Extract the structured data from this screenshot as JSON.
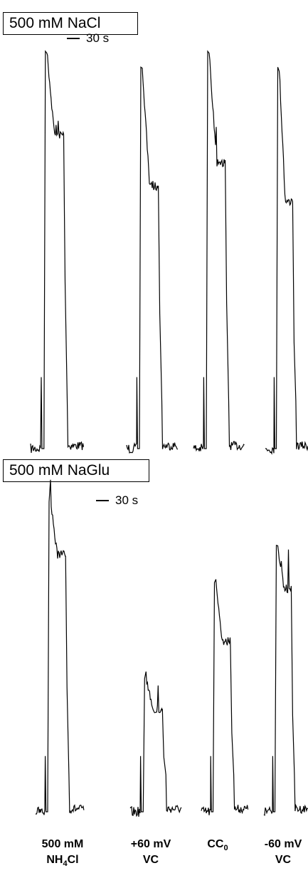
{
  "panels": {
    "top": {
      "label": "500 mM NaCl",
      "scale_bar": "30 s"
    },
    "bottom": {
      "label": "500 mM NaGlu",
      "scale_bar": "30 s"
    }
  },
  "conditions": [
    {
      "line1": "500 mM",
      "line2": "NH",
      "line2_sub": "4",
      "line2_tail": "Cl"
    },
    {
      "line1": "+60 mV",
      "line2": "VC",
      "line2_sub": "",
      "line2_tail": ""
    },
    {
      "line1": "CC",
      "line1_sub": "0",
      "line2": "",
      "line2_sub": "",
      "line2_tail": ""
    },
    {
      "line1": "-60 mV",
      "line2": "VC",
      "line2_sub": "",
      "line2_tail": ""
    }
  ],
  "colors": {
    "trace": "#000000",
    "background": "#ffffff"
  },
  "chart_data": [
    {
      "type": "line",
      "panel": "500 mM NaCl",
      "title": "",
      "xlabel": "",
      "ylabel": "",
      "scale_bar": "30 s",
      "series": [
        {
          "condition": "500 mM NH4Cl",
          "baseline": 0,
          "peak": 1.0,
          "plateau": 0.79,
          "plateau_ratio": 0.79
        },
        {
          "condition": "+60 mV VC",
          "baseline": 0,
          "peak": 0.96,
          "plateau": 0.66,
          "plateau_ratio": 0.69
        },
        {
          "condition": "CC0",
          "baseline": 0,
          "peak": 1.0,
          "plateau": 0.72,
          "plateau_ratio": 0.72
        },
        {
          "condition": "-60 mV VC",
          "baseline": 0,
          "peak": 0.96,
          "plateau": 0.62,
          "plateau_ratio": 0.65
        }
      ]
    },
    {
      "type": "line",
      "panel": "500 mM NaGlu",
      "title": "",
      "xlabel": "",
      "ylabel": "",
      "scale_bar": "30 s",
      "series": [
        {
          "condition": "500 mM NH4Cl",
          "baseline": 0,
          "peak": 1.0,
          "plateau": 0.83,
          "plateau_ratio": 0.83
        },
        {
          "condition": "+60 mV VC",
          "baseline": 0,
          "peak": 0.43,
          "plateau": 0.33,
          "plateau_ratio": 0.77
        },
        {
          "condition": "CC0",
          "baseline": 0,
          "peak": 0.74,
          "plateau": 0.55,
          "plateau_ratio": 0.74
        },
        {
          "condition": "-60 mV VC",
          "baseline": 0,
          "peak": 0.86,
          "plateau": 0.72,
          "plateau_ratio": 0.84
        }
      ]
    }
  ]
}
